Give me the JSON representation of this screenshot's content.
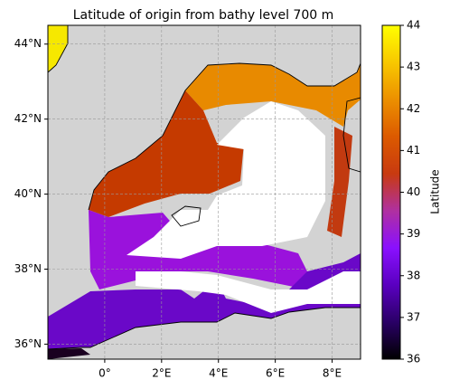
{
  "chart_data": {
    "type": "map",
    "title": "Latitude of origin from bathy level 700 m",
    "xlim": [
      -2,
      9
    ],
    "ylim": [
      35.6,
      44.5
    ],
    "xticks": [
      {
        "value": 0,
        "label": "0°"
      },
      {
        "value": 2,
        "label": "2°E"
      },
      {
        "value": 4,
        "label": "4°E"
      },
      {
        "value": 6,
        "label": "6°E"
      },
      {
        "value": 8,
        "label": "8°E"
      }
    ],
    "yticks": [
      {
        "value": 36,
        "label": "36°N"
      },
      {
        "value": 38,
        "label": "38°N"
      },
      {
        "value": 40,
        "label": "40°N"
      },
      {
        "value": 42,
        "label": "42°N"
      },
      {
        "value": 44,
        "label": "44°N"
      }
    ],
    "grid": true,
    "colormap": "gnuplot2",
    "colorbar": {
      "label": "Latitude",
      "lim": [
        36,
        44
      ],
      "ticks": [
        36,
        37,
        38,
        39,
        40,
        41,
        42,
        43,
        44
      ]
    }
  }
}
